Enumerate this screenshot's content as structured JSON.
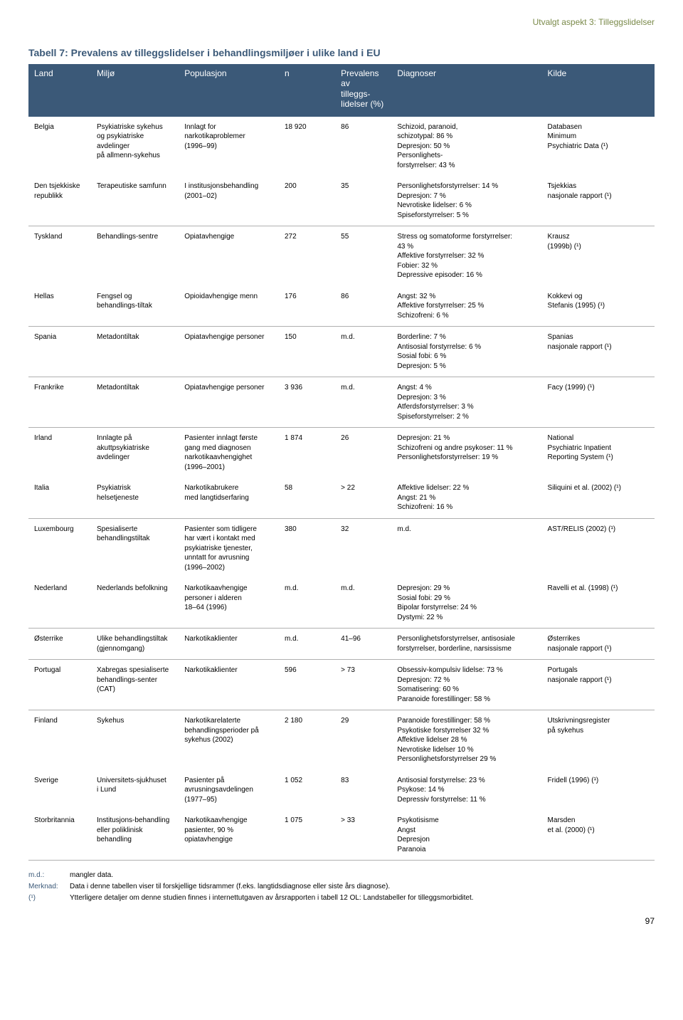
{
  "chapter_title": "Utvalgt aspekt 3: Tilleggslidelser",
  "table_title": "Tabell 7: Prevalens av tilleggslidelser i behandlingsmiljøer i ulike land i EU",
  "headers": {
    "c0": "Land",
    "c1": "Miljø",
    "c2": "Populasjon",
    "c3": "n",
    "c4": "Prevalens av\ntilleggs-lidelser (%)",
    "c5": "Diagnoser",
    "c6": "Kilde"
  },
  "rows": [
    {
      "sep": false,
      "c0": "Belgia",
      "c1": "Psykiatriske sykehus\nog psykiatriske avdelinger\npå allmenn-sykehus",
      "c2": "Innlagt for\nnarkotikaproblemer\n(1996–99)",
      "c3": "18 920",
      "c4": "86",
      "c5": "Schizoid, paranoid,\nschizotypal: 86 %\nDepresjon: 50 %\nPersonlighets-\nforstyrrelser: 43 %",
      "c6": "Databasen\nMinimum\nPsychiatric Data (¹)"
    },
    {
      "sep": true,
      "c0": "Den tsjekkiske\nrepublikk",
      "c1": "Terapeutiske samfunn",
      "c2": "I institusjonsbehandling\n(2001–02)",
      "c3": "200",
      "c4": "35",
      "c5": "Personlighetsforstyrrelser: 14 %\nDepresjon: 7 %\nNevrotiske lidelser: 6 %\nSpiseforstyrrelser: 5 %",
      "c6": "Tsjekkias\nnasjonale rapport (¹)"
    },
    {
      "sep": false,
      "c0": "Tyskland",
      "c1": "Behandlings-sentre",
      "c2": "Opiatavhengige",
      "c3": "272",
      "c4": "55",
      "c5": "Stress og somatoforme forstyrrelser:\n43 %\nAffektive forstyrrelser: 32 %\nFobier: 32 %\nDepressive episoder: 16 %",
      "c6": "Krausz\n(1999b) (¹)"
    },
    {
      "sep": true,
      "c0": "Hellas",
      "c1": "Fengsel og\nbehandlings-tiltak",
      "c2": "Opioidavhengige menn",
      "c3": "176",
      "c4": "86",
      "c5": "Angst: 32 %\nAffektive forstyrrelser: 25 %\nSchizofreni: 6 %",
      "c6": "Kokkevi og\nStefanis (1995) (¹)"
    },
    {
      "sep": true,
      "c0": "Spania",
      "c1": "Metadontiltak",
      "c2": "Opiatavhengige personer",
      "c3": "150",
      "c4": "m.d.",
      "c5": "Borderline: 7 %\nAntisosial forstyrrelse: 6 %\nSosial fobi: 6 %\nDepresjon: 5 %",
      "c6": "Spanias\nnasjonale rapport (¹)"
    },
    {
      "sep": true,
      "c0": "Frankrike",
      "c1": "Metadontiltak",
      "c2": "Opiatavhengige personer",
      "c3": "3 936",
      "c4": "m.d.",
      "c5": "Angst: 4 %\nDepresjon: 3 %\nAtferdsforstyrrelser: 3 %\nSpiseforstyrrelser: 2 %",
      "c6": "Facy (1999) (¹)"
    },
    {
      "sep": false,
      "c0": "Irland",
      "c1": "Innlagte på\nakuttpsykiatriske avdelinger",
      "c2": "Pasienter innlagt første\ngang med diagnosen\nnarkotikaavhengighet\n(1996–2001)",
      "c3": "1 874",
      "c4": "26",
      "c5": "Depresjon: 21 %\nSchizofreni og andre psykoser: 11 %\nPersonlighetsforstyrrelser: 19 %",
      "c6": "National\nPsychiatric Inpatient\nReporting System (¹)"
    },
    {
      "sep": true,
      "c0": "Italia",
      "c1": "Psykiatrisk helsetjeneste",
      "c2": "Narkotikabrukere\nmed langtidserfaring",
      "c3": "58",
      "c4": "> 22",
      "c5": "Affektive lidelser: 22 %\nAngst: 21 %\nSchizofreni: 16 %",
      "c6": "Siliquini et al. (2002) (¹)"
    },
    {
      "sep": false,
      "c0": "Luxembourg",
      "c1": "Spesialiserte\nbehandlingstiltak",
      "c2": "Pasienter som tidligere\nhar vært i kontakt med\npsykiatriske tjenester,\nunntatt for avrusning\n(1996–2002)",
      "c3": "380",
      "c4": "32",
      "c5": "m.d.",
      "c6": "AST/RELIS (2002) (¹)"
    },
    {
      "sep": true,
      "c0": "Nederland",
      "c1": "Nederlands befolkning",
      "c2": "Narkotikaavhengige\npersoner i alderen\n18–64 (1996)",
      "c3": "m.d.",
      "c4": "m.d.",
      "c5": "Depresjon: 29 %\nSosial fobi: 29 %\nBipolar forstyrrelse: 24 %\nDystymi: 22 %",
      "c6": "Ravelli et al. (1998) (¹)"
    },
    {
      "sep": true,
      "c0": "Østerrike",
      "c1": "Ulike behandlingstiltak\n(gjennomgang)",
      "c2": "Narkotikaklienter",
      "c3": "m.d.",
      "c4": "41–96",
      "c5": "Personlighetsforstyrrelser, antisosiale\nforstyrrelser, borderline, narsissisme",
      "c6": "Østerrikes\nnasjonale rapport (¹)"
    },
    {
      "sep": true,
      "c0": "Portugal",
      "c1": "Xabregas spesialiserte\nbehandlings-senter (CAT)",
      "c2": "Narkotikaklienter",
      "c3": "596",
      "c4": "> 73",
      "c5": "Obsessiv-kompulsiv lidelse: 73 %\nDepresjon: 72 %\nSomatisering: 60 %\nParanoide forestillinger: 58 %",
      "c6": "Portugals\nnasjonale rapport (¹)"
    },
    {
      "sep": false,
      "c0": "Finland",
      "c1": "Sykehus",
      "c2": "Narkotikarelaterte\nbehandlingsperioder på\nsykehus (2002)",
      "c3": "2 180",
      "c4": "29",
      "c5": "Paranoide forestillinger: 58 %\nPsykotiske forstyrrelser 32 %\nAffektive lidelser 28 %\nNevrotiske lidelser 10 %\nPersonlighetsforstyrrelser 29 %",
      "c6": "Utskrivningsregister\npå sykehus"
    },
    {
      "sep": false,
      "c0": "Sverige",
      "c1": "Universitets-sjukhuset\ni Lund",
      "c2": "Pasienter på\navrusningsavdelingen\n(1977–95)",
      "c3": "1 052",
      "c4": "83",
      "c5": "Antisosial forstyrrelse: 23 %\nPsykose: 14 %\nDepressiv forstyrrelse: 11 %",
      "c6": "Fridell (1996) (¹)"
    },
    {
      "sep": true,
      "c0": "Storbritannia",
      "c1": "Institusjons-behandling\neller poliklinisk\nbehandling",
      "c2": "Narkotikaavhengige\npasienter, 90 %\nopiatavhengige",
      "c3": "1 075",
      "c4": "> 33",
      "c5": "Psykotisisme\nAngst\nDepresjon\nParanoia",
      "c6": "Marsden\net al. (2000) (¹)"
    }
  ],
  "footnotes": {
    "f1_label": "m.d.:",
    "f1_text": "mangler data.",
    "f2_label": "Merknad:",
    "f2_text": "Data i denne tabellen viser til forskjellige tidsrammer (f.eks. langtidsdiagnose eller siste års diagnose).",
    "f3_label": "(¹)",
    "f3_text": "Ytterligere detaljer om denne studien finnes i internettutgaven av årsrapporten i tabell 12 OL: Landstabeller for tilleggsmorbiditet."
  },
  "pagenum": "97",
  "colors": {
    "header_bg": "#3b5978",
    "header_fg": "#ffffff",
    "accent": "#7a8a4a",
    "sep": "#b0b0b0"
  }
}
